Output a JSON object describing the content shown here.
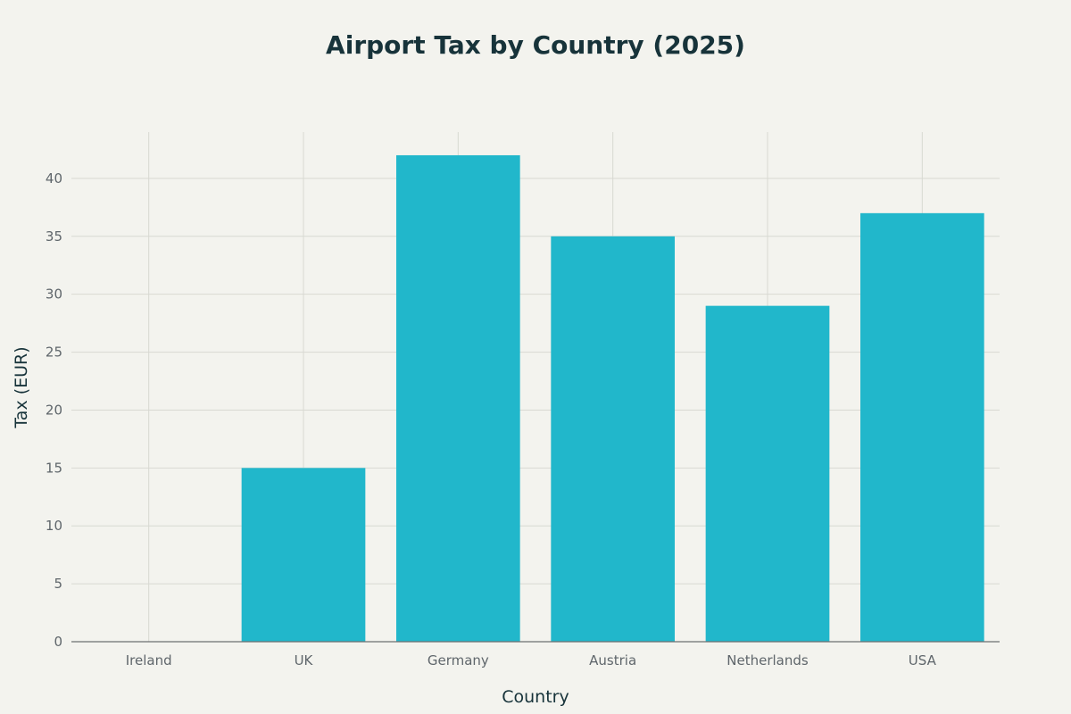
{
  "chart_data": {
    "type": "bar",
    "title": "Airport Tax by Country (2025)",
    "xlabel": "Country",
    "ylabel": "Tax (EUR)",
    "categories": [
      "Ireland",
      "UK",
      "Germany",
      "Austria",
      "Netherlands",
      "USA"
    ],
    "values": [
      0,
      15,
      42,
      35,
      29,
      37
    ],
    "ylim": [
      0,
      44
    ],
    "yticks": [
      0,
      5,
      10,
      15,
      20,
      25,
      30,
      35,
      40
    ],
    "grid": true,
    "legend": "none",
    "colors": {
      "bar": "#21b7cb",
      "background": "#f3f3ee",
      "text": "#17333a",
      "tick_text": "#5f666b",
      "grid": "#d8d9d2"
    }
  }
}
